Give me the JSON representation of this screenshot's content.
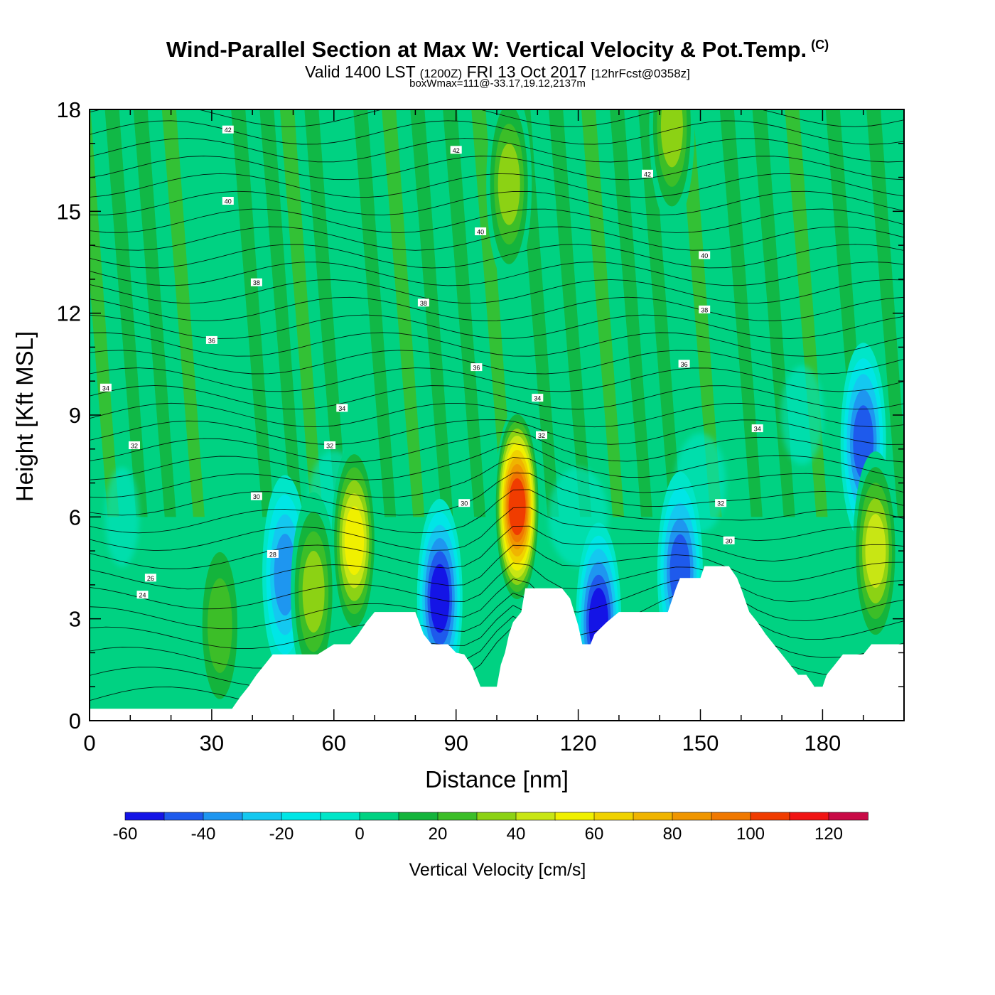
{
  "title": "Wind-Parallel Section at Max W: Vertical Velocity & Pot.Temp.",
  "copyright": "(C)",
  "subtitle_valid": "Valid 1400 LST",
  "subtitle_zulu": "(1200Z)",
  "subtitle_date": "FRI 13 Oct 2017",
  "subtitle_fcst": "[12hrFcst@0358z]",
  "subtitle_box": "boxWmax=111@-33.17,19.12,2137m",
  "chart_data": {
    "type": "heatmap",
    "xlabel": "Distance [nm]",
    "ylabel": "Height [Kft MSL]",
    "xlim": [
      0,
      200
    ],
    "ylim": [
      0,
      18
    ],
    "x_ticks": [
      "0",
      "30",
      "60",
      "90",
      "120",
      "150",
      "180"
    ],
    "y_ticks": [
      "0",
      "3",
      "6",
      "9",
      "12",
      "15",
      "18"
    ],
    "colorbar": {
      "title": "Vertical Velocity [cm/s]",
      "tick_labels": [
        "-60",
        "-40",
        "-20",
        "0",
        "20",
        "40",
        "60",
        "80",
        "100",
        "120"
      ],
      "bins": [
        -60,
        -50,
        -40,
        -30,
        -20,
        -10,
        0,
        10,
        20,
        30,
        40,
        50,
        60,
        70,
        80,
        90,
        100,
        110,
        120,
        130
      ],
      "colors": [
        "#1414e6",
        "#1e5aec",
        "#1e96f0",
        "#14c8f0",
        "#00e6e6",
        "#00e6c8",
        "#00d282",
        "#14b43c",
        "#3cbe28",
        "#8cd214",
        "#c8e614",
        "#f0f000",
        "#f0d200",
        "#f0b400",
        "#f09600",
        "#f07800",
        "#f03c00",
        "#f01414",
        "#c80a46"
      ]
    },
    "terrain_kft": [
      [
        0,
        0.35
      ],
      [
        35,
        0.35
      ],
      [
        37,
        0.7
      ],
      [
        39,
        1.0
      ],
      [
        41,
        1.35
      ],
      [
        43,
        1.65
      ],
      [
        45,
        1.95
      ],
      [
        56,
        1.95
      ],
      [
        60,
        2.25
      ],
      [
        64,
        2.25
      ],
      [
        66,
        2.55
      ],
      [
        68,
        2.9
      ],
      [
        70,
        3.2
      ],
      [
        80,
        3.2
      ],
      [
        82,
        2.55
      ],
      [
        84,
        2.25
      ],
      [
        88,
        2.25
      ],
      [
        90,
        2.0
      ],
      [
        92,
        1.95
      ],
      [
        94,
        1.6
      ],
      [
        95,
        1.3
      ],
      [
        96,
        1.0
      ],
      [
        100,
        1.0
      ],
      [
        101,
        1.65
      ],
      [
        102,
        2.0
      ],
      [
        103,
        2.55
      ],
      [
        104,
        2.9
      ],
      [
        106,
        3.2
      ],
      [
        107,
        3.9
      ],
      [
        116,
        3.9
      ],
      [
        118,
        3.6
      ],
      [
        119,
        3.2
      ],
      [
        120,
        2.8
      ],
      [
        121,
        2.25
      ],
      [
        123,
        2.25
      ],
      [
        124,
        2.55
      ],
      [
        127,
        2.9
      ],
      [
        130,
        3.2
      ],
      [
        142,
        3.2
      ],
      [
        143,
        3.55
      ],
      [
        144,
        3.9
      ],
      [
        145,
        4.2
      ],
      [
        150,
        4.2
      ],
      [
        151,
        4.55
      ],
      [
        157,
        4.55
      ],
      [
        159,
        4.2
      ],
      [
        160,
        3.9
      ],
      [
        161,
        3.55
      ],
      [
        162,
        3.2
      ],
      [
        164,
        2.9
      ],
      [
        166,
        2.55
      ],
      [
        168,
        2.25
      ],
      [
        170,
        1.95
      ],
      [
        172,
        1.65
      ],
      [
        174,
        1.35
      ],
      [
        176,
        1.35
      ],
      [
        178,
        1.0
      ],
      [
        180,
        1.0
      ],
      [
        181,
        1.35
      ],
      [
        183,
        1.65
      ],
      [
        185,
        1.95
      ],
      [
        190,
        1.95
      ],
      [
        192,
        2.25
      ],
      [
        200,
        2.25
      ]
    ],
    "vertical_velocity_features": [
      {
        "x": 32,
        "z": 2.8,
        "w": 30
      },
      {
        "x": 48,
        "z": 4.3,
        "w": -40
      },
      {
        "x": 55,
        "z": 3.8,
        "w": 35
      },
      {
        "x": 65,
        "z": 5.3,
        "w": 55
      },
      {
        "x": 86,
        "z": 3.6,
        "w": -60
      },
      {
        "x": 105,
        "z": 6.3,
        "w": 111
      },
      {
        "x": 125,
        "z": 2.9,
        "w": -55
      },
      {
        "x": 145,
        "z": 4.4,
        "w": -45
      },
      {
        "x": 190,
        "z": 8.2,
        "w": -45
      },
      {
        "x": 193,
        "z": 5.0,
        "w": 45
      },
      {
        "x": 143,
        "z": 17.5,
        "w": 40
      },
      {
        "x": 103,
        "z": 15.8,
        "w": 35
      }
    ],
    "theta_contour_labels": [
      {
        "text": "42",
        "x": 34,
        "z": 17.4
      },
      {
        "text": "42",
        "x": 90,
        "z": 16.8
      },
      {
        "text": "42",
        "x": 137,
        "z": 16.1
      },
      {
        "text": "40",
        "x": 34,
        "z": 15.3
      },
      {
        "text": "40",
        "x": 96,
        "z": 14.4
      },
      {
        "text": "40",
        "x": 151,
        "z": 13.7
      },
      {
        "text": "38",
        "x": 41,
        "z": 12.9
      },
      {
        "text": "38",
        "x": 82,
        "z": 12.3
      },
      {
        "text": "38",
        "x": 151,
        "z": 12.1
      },
      {
        "text": "36",
        "x": 30,
        "z": 11.2
      },
      {
        "text": "36",
        "x": 95,
        "z": 10.4
      },
      {
        "text": "36",
        "x": 146,
        "z": 10.5
      },
      {
        "text": "34",
        "x": 4,
        "z": 9.8
      },
      {
        "text": "34",
        "x": 62,
        "z": 9.2
      },
      {
        "text": "34",
        "x": 110,
        "z": 9.5
      },
      {
        "text": "34",
        "x": 164,
        "z": 8.6
      },
      {
        "text": "32",
        "x": 11,
        "z": 8.1
      },
      {
        "text": "32",
        "x": 59,
        "z": 8.1
      },
      {
        "text": "32",
        "x": 111,
        "z": 8.4
      },
      {
        "text": "32",
        "x": 155,
        "z": 6.4
      },
      {
        "text": "30",
        "x": 41,
        "z": 6.6
      },
      {
        "text": "30",
        "x": 92,
        "z": 6.4
      },
      {
        "text": "30",
        "x": 157,
        "z": 5.3
      },
      {
        "text": "28",
        "x": 45,
        "z": 4.9
      },
      {
        "text": "26",
        "x": 15,
        "z": 4.2
      },
      {
        "text": "24",
        "x": 13,
        "z": 3.7
      }
    ]
  }
}
